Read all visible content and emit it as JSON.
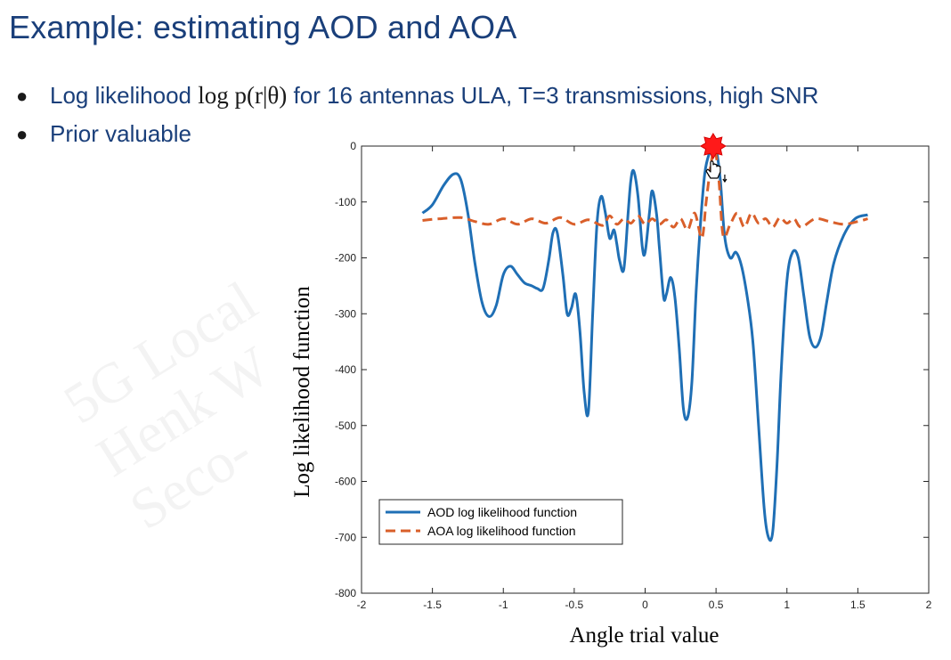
{
  "slide": {
    "title": "Example: estimating AOD and AOA",
    "bullets": [
      {
        "prefix": "Log likelihood ",
        "math": "log p(r|θ)",
        "suffix": " for 16 antennas ULA, T=3 transmissions, high SNR"
      },
      {
        "text": "Prior valuable"
      }
    ],
    "watermark_lines": [
      "5G Local",
      "Henk W",
      "Seco-"
    ]
  },
  "chart_data": {
    "type": "line",
    "xlabel": "Angle trial value",
    "ylabel": "Log likelihood function",
    "xlim": [
      -2,
      2
    ],
    "ylim": [
      -800,
      0
    ],
    "xticks": [
      -2,
      -1.5,
      -1,
      -0.5,
      0,
      0.5,
      1,
      1.5,
      2
    ],
    "yticks": [
      0,
      -100,
      -200,
      -300,
      -400,
      -500,
      -600,
      -700,
      -800
    ],
    "grid": false,
    "legend_position": "bottom-left",
    "colors": {
      "aod": "#1f6fb5",
      "aoa": "#d95f2a",
      "marker": "#ff1a1a"
    },
    "series": [
      {
        "name": "AOD log likelihood function",
        "style": "solid",
        "x": [
          -1.57,
          -1.5,
          -1.42,
          -1.35,
          -1.3,
          -1.25,
          -1.2,
          -1.15,
          -1.1,
          -1.05,
          -1.0,
          -0.95,
          -0.9,
          -0.85,
          -0.8,
          -0.76,
          -0.72,
          -0.68,
          -0.65,
          -0.62,
          -0.58,
          -0.55,
          -0.52,
          -0.49,
          -0.46,
          -0.43,
          -0.4,
          -0.37,
          -0.34,
          -0.31,
          -0.28,
          -0.25,
          -0.22,
          -0.2,
          -0.18,
          -0.15,
          -0.12,
          -0.1,
          -0.08,
          -0.05,
          -0.02,
          0.0,
          0.03,
          0.05,
          0.08,
          0.1,
          0.13,
          0.15,
          0.18,
          0.21,
          0.24,
          0.27,
          0.3,
          0.33,
          0.36,
          0.39,
          0.42,
          0.45,
          0.48,
          0.5,
          0.53,
          0.56,
          0.6,
          0.64,
          0.68,
          0.72,
          0.76,
          0.8,
          0.84,
          0.87,
          0.9,
          0.93,
          0.96,
          1.0,
          1.04,
          1.08,
          1.12,
          1.16,
          1.2,
          1.24,
          1.28,
          1.33,
          1.4,
          1.48,
          1.57
        ],
        "y": [
          -120,
          -105,
          -70,
          -50,
          -60,
          -120,
          -210,
          -280,
          -305,
          -285,
          -230,
          -215,
          -230,
          -245,
          -250,
          -255,
          -255,
          -205,
          -155,
          -155,
          -230,
          -300,
          -290,
          -265,
          -330,
          -440,
          -475,
          -300,
          -140,
          -90,
          -120,
          -165,
          -150,
          -175,
          -205,
          -220,
          -120,
          -60,
          -45,
          -90,
          -180,
          -190,
          -120,
          -80,
          -120,
          -180,
          -270,
          -265,
          -235,
          -270,
          -360,
          -470,
          -485,
          -420,
          -260,
          -140,
          -50,
          -15,
          -5,
          -5,
          -60,
          -160,
          -200,
          -190,
          -215,
          -270,
          -350,
          -500,
          -650,
          -700,
          -690,
          -570,
          -400,
          -240,
          -190,
          -200,
          -270,
          -340,
          -360,
          -340,
          -280,
          -210,
          -160,
          -130,
          -123
        ]
      },
      {
        "name": "AOA log likelihood function",
        "style": "dashed",
        "x": [
          -1.57,
          -1.45,
          -1.3,
          -1.2,
          -1.1,
          -1.0,
          -0.9,
          -0.8,
          -0.7,
          -0.6,
          -0.5,
          -0.4,
          -0.3,
          -0.25,
          -0.2,
          -0.15,
          -0.1,
          -0.05,
          0.0,
          0.05,
          0.1,
          0.15,
          0.2,
          0.25,
          0.3,
          0.35,
          0.4,
          0.43,
          0.46,
          0.49,
          0.52,
          0.55,
          0.6,
          0.65,
          0.7,
          0.75,
          0.8,
          0.85,
          0.9,
          0.95,
          1.0,
          1.05,
          1.1,
          1.2,
          1.3,
          1.4,
          1.5,
          1.57
        ],
        "y": [
          -133,
          -130,
          -128,
          -135,
          -140,
          -130,
          -140,
          -130,
          -138,
          -128,
          -140,
          -132,
          -142,
          -125,
          -140,
          -130,
          -138,
          -125,
          -140,
          -130,
          -140,
          -132,
          -145,
          -130,
          -150,
          -120,
          -165,
          -100,
          -40,
          -5,
          -60,
          -160,
          -140,
          -120,
          -145,
          -120,
          -138,
          -130,
          -145,
          -128,
          -138,
          -130,
          -145,
          -130,
          -135,
          -140,
          -135,
          -130
        ]
      }
    ],
    "marker": {
      "x": 0.48,
      "y": 0,
      "shape": "star"
    }
  }
}
